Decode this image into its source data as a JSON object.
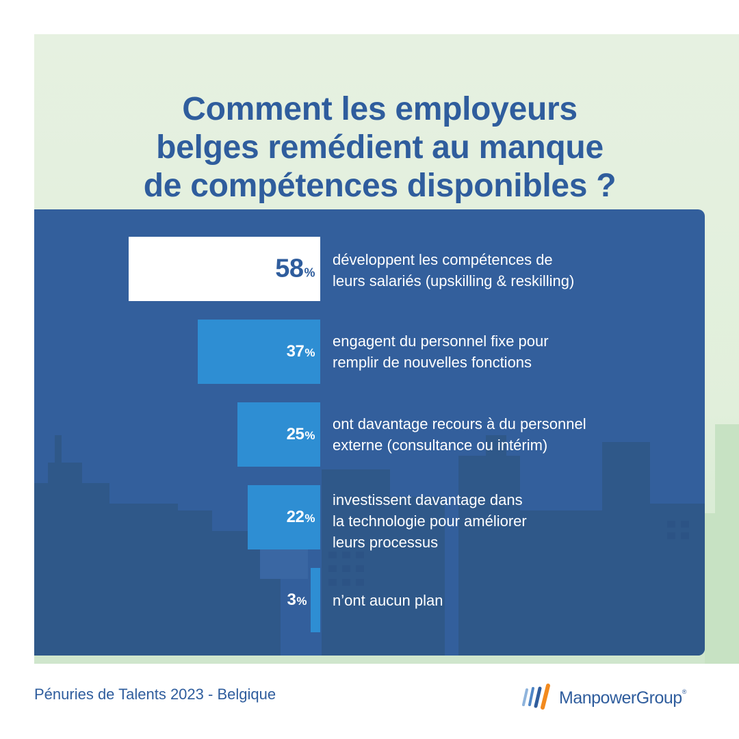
{
  "title_lines": [
    "Comment les employeurs",
    "belges remédient au manque",
    "de compétences disponibles ?"
  ],
  "chart_data": {
    "type": "bar",
    "orientation": "horizontal",
    "unit": "%",
    "categories": [
      "développent les compétences de\nleurs salariés (upskilling & reskilling)",
      "engagent du personnel fixe pour\nremplir de nouvelles fonctions",
      "ont davantage recours à du personnel\nexterne  (consultance ou intérim)",
      "investissent davantage dans\nla technologie pour améliorer\nleurs processus",
      "n’ont aucun plan"
    ],
    "values": [
      58,
      37,
      25,
      22,
      3
    ],
    "value_labels": [
      "58",
      "37",
      "25",
      "22",
      "3"
    ],
    "highlight_color": "#ffffff",
    "bar_color": "#2e8ed3"
  },
  "colors": {
    "panel": "#335f9c",
    "title": "#2f5d9d",
    "background": "#e1efdb"
  },
  "footer": {
    "source": "Pénuries de Talents 2023 - Belgique"
  },
  "logo": {
    "name": "ManpowerGroup",
    "registered": "®"
  }
}
